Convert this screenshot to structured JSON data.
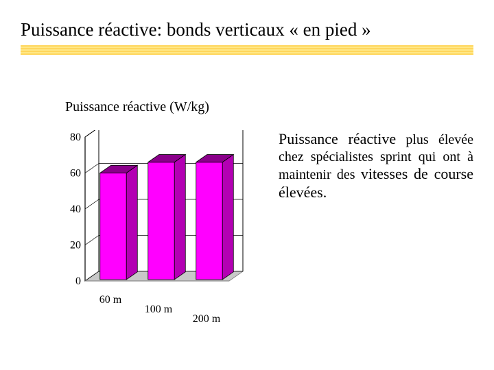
{
  "title": "Puissance réactive: bonds verticaux « en pied »",
  "subtitle": "Puissance réactive (W/kg)",
  "chart": {
    "type": "bar-3d",
    "categories": [
      "60 m",
      "100 m",
      "200 m"
    ],
    "values": [
      60,
      66,
      66
    ],
    "ylim": [
      0,
      80
    ],
    "ytick_step": 20,
    "yticks": [
      "0",
      "20",
      "40",
      "60",
      "80"
    ],
    "bar_face_color": "#ff00ff",
    "bar_top_color": "#8a008a",
    "bar_side_color": "#b300b3",
    "floor_color": "#c8c8c8",
    "floor_edge": "#8a8a8a",
    "back_wall_color": "#ffffff",
    "gridline_color": "#000000",
    "gridline_width": 0.7,
    "axis_color": "#000000",
    "label_fontsize": 16,
    "font_family": "Times New Roman"
  },
  "caption": {
    "lead": "Puissance réactive",
    "t1": " plus élevée chez spécialistes sprint qui ont à maintenir des ",
    "big": "vitesses de course élevées.",
    "tail": ""
  }
}
